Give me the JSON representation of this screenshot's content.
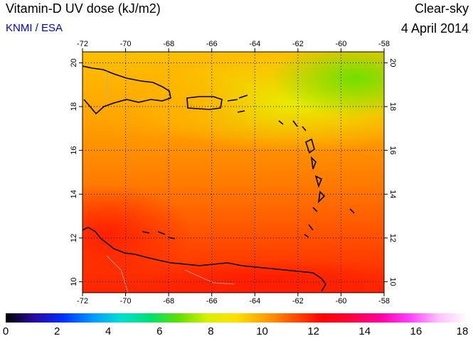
{
  "header": {
    "title": "Vitamin-D UV dose (kJ/m2)",
    "credit": "KNMI / ESA",
    "sky_condition": "Clear-sky",
    "date": "4 April 2014"
  },
  "map": {
    "lon_range": [
      -72,
      -58
    ],
    "lat_range": [
      9.5,
      20.5
    ],
    "lon_ticks": [
      "-72",
      "-70",
      "-68",
      "-66",
      "-64",
      "-62",
      "-60",
      "-58"
    ],
    "lat_ticks": [
      "10",
      "12",
      "14",
      "16",
      "18",
      "20"
    ],
    "grid": "dotted every 2 degrees"
  },
  "colorbar": {
    "min": 0,
    "max": 18,
    "labels": [
      "0",
      "2",
      "4",
      "6",
      "8",
      "10",
      "12",
      "14",
      "16",
      "18"
    ],
    "colors": [
      "#000000",
      "#2a0aa0",
      "#0030ff",
      "#0099ff",
      "#00e0d0",
      "#00e070",
      "#60e000",
      "#d8f000",
      "#ffe000",
      "#ffa000",
      "#ff5000",
      "#ff0000",
      "#ff0040",
      "#ff00a0",
      "#ff40ff",
      "#ffc0ff",
      "#ffffff"
    ]
  }
}
